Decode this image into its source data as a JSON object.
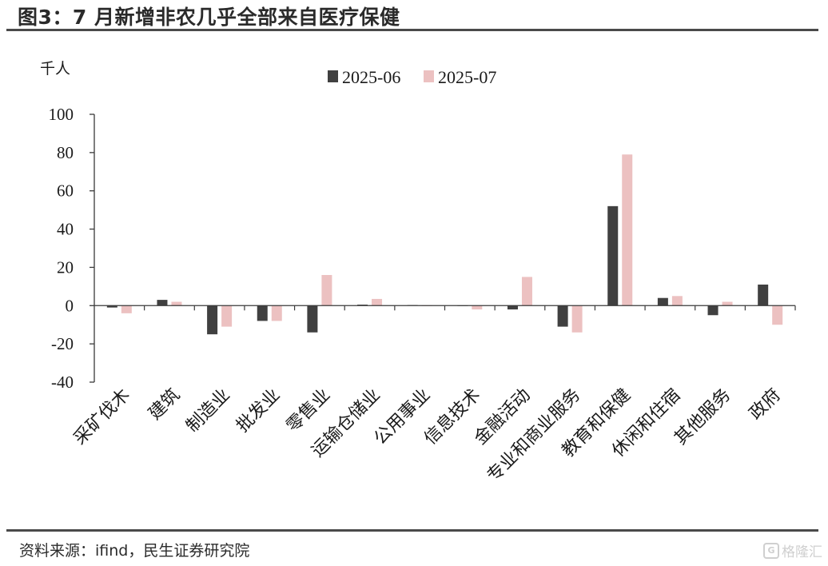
{
  "header": {
    "title": "图3：7 月新增非农几乎全部来自医疗保健"
  },
  "footer": {
    "source": "资料来源：ifind，民生证券研究院",
    "watermark": "格隆汇"
  },
  "chart_data": {
    "type": "bar",
    "ylabel": "千人",
    "ylim": [
      -40,
      100
    ],
    "yticks": [
      100,
      80,
      60,
      40,
      20,
      0,
      -20,
      -40
    ],
    "legend_position": "top-center",
    "categories": [
      "采矿伐木",
      "建筑",
      "制造业",
      "批发业",
      "零售业",
      "运输仓储业",
      "公用事业",
      "信息技术",
      "金融活动",
      "专业和商业服务",
      "教育和保健",
      "休闲和住宿",
      "其他服务",
      "政府"
    ],
    "series": [
      {
        "name": "2025-06",
        "color": "#404040",
        "values": [
          -1,
          3,
          -15,
          -8,
          -14,
          0.5,
          0.3,
          0,
          -2,
          -11,
          52,
          4,
          -5,
          11
        ]
      },
      {
        "name": "2025-07",
        "color": "#ecc1c1",
        "values": [
          -4,
          2,
          -11,
          -8,
          16,
          3.5,
          -0.3,
          -2,
          15,
          -14,
          79,
          5,
          2,
          -10
        ]
      }
    ]
  }
}
